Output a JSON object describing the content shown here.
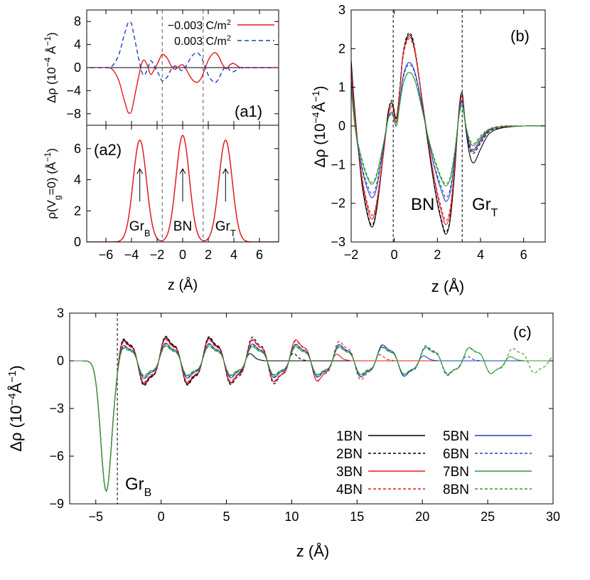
{
  "chart_data": [
    {
      "id": "a1",
      "type": "line",
      "panel_label": "(a1)",
      "ylabel": "Δρ (10⁻⁴ Å⁻¹)",
      "xlim": [
        -7.5,
        7.5
      ],
      "ylim": [
        -10,
        10
      ],
      "yticks": [
        -8,
        -4,
        0,
        4,
        8
      ],
      "xticks": [
        -6,
        -4,
        -2,
        0,
        2,
        4,
        6
      ],
      "vlines": [
        -1.6,
        1.6
      ],
      "legend": [
        {
          "label": "−0.003 C/m²",
          "color": "#e41a1c",
          "style": "solid"
        },
        {
          "label": "0.003 C/m²",
          "color": "#1f3fbf",
          "style": "dashed"
        }
      ],
      "series": [
        {
          "name": "−0.003 C/m²",
          "color": "#e41a1c",
          "dash": "",
          "x": [
            -7.2,
            -6,
            -5.5,
            -5,
            -4.6,
            -4.3,
            -4.15,
            -4,
            -3.8,
            -3.5,
            -3.2,
            -3.0,
            -2.75,
            -2.5,
            -2.2,
            -1.9,
            -1.6,
            -1.2,
            -0.9,
            -0.6,
            -0.3,
            0,
            0.3,
            0.6,
            0.9,
            1.2,
            1.5,
            1.8,
            2.1,
            2.5,
            2.8,
            3.1,
            3.4,
            3.7,
            4.0,
            4.5,
            5,
            6,
            7.2
          ],
          "y": [
            0,
            0,
            -0.3,
            -2.2,
            -5.4,
            -7.6,
            -7.9,
            -7.6,
            -5.5,
            -2.2,
            0.7,
            1.3,
            0.3,
            -1.2,
            -0.2,
            1.0,
            2.3,
            1.6,
            0.3,
            -0.3,
            0.2,
            0.5,
            -0.4,
            -1.6,
            -2.4,
            -2.5,
            -1.6,
            0.2,
            1.7,
            2.6,
            2.0,
            0.6,
            -0.2,
            0.5,
            0.7,
            0,
            0,
            0,
            0
          ]
        },
        {
          "name": "0.003 C/m²",
          "color": "#1f3fbf",
          "dash": "6,4",
          "x": [
            -7.2,
            -6,
            -5.5,
            -5,
            -4.6,
            -4.3,
            -4.15,
            -4,
            -3.8,
            -3.5,
            -3.2,
            -3.0,
            -2.75,
            -2.5,
            -2.2,
            -1.9,
            -1.6,
            -1.2,
            -0.9,
            -0.6,
            -0.3,
            0,
            0.3,
            0.6,
            0.9,
            1.2,
            1.5,
            1.8,
            2.1,
            2.5,
            2.8,
            3.1,
            3.4,
            3.7,
            4.0,
            4.5,
            5,
            6,
            7.2
          ],
          "y": [
            0,
            0,
            0.3,
            2.2,
            5.4,
            7.6,
            7.9,
            7.6,
            5.5,
            2.2,
            -0.7,
            -1.3,
            -0.3,
            1.2,
            0.2,
            -1.0,
            -2.3,
            -1.6,
            -0.3,
            0.3,
            -0.2,
            -0.5,
            0.4,
            1.6,
            2.4,
            2.5,
            1.6,
            -0.2,
            -1.7,
            -2.6,
            -2.0,
            -0.6,
            0.2,
            -0.5,
            -0.7,
            0,
            0,
            0,
            0
          ]
        }
      ]
    },
    {
      "id": "a2",
      "type": "line",
      "panel_label": "(a2)",
      "ylabel": "ρ(V_g=0) (Å⁻¹)",
      "xlabel": "z (Å)",
      "xlim": [
        -7.5,
        7.5
      ],
      "ylim": [
        0,
        7.5
      ],
      "yticks": [
        0,
        2,
        4,
        6
      ],
      "xticks": [
        -6,
        -4,
        -2,
        0,
        2,
        4,
        6
      ],
      "vlines": [
        -1.6,
        1.6
      ],
      "peaks": [
        {
          "center": -3.35,
          "height": 6.55,
          "sigma": 0.52,
          "label": "Gr_B"
        },
        {
          "center": 0.0,
          "height": 6.85,
          "sigma": 0.52,
          "label": "BN"
        },
        {
          "center": 3.35,
          "height": 6.55,
          "sigma": 0.52,
          "label": "Gr_T"
        }
      ],
      "series": [
        {
          "name": "ρ(V_g=0)",
          "color": "#e41a1c"
        }
      ]
    },
    {
      "id": "b",
      "type": "line",
      "panel_label": "(b)",
      "xlabel": "z (Å)",
      "ylabel": "Δρ (10⁻⁴Å⁻¹)",
      "xlim": [
        -2,
        7
      ],
      "ylim": [
        -3,
        3
      ],
      "xticks": [
        -2,
        0,
        2,
        4,
        6
      ],
      "yticks": [
        -3,
        -2,
        -1,
        0,
        1,
        2,
        3
      ],
      "vlines": [
        -0.05,
        3.15
      ],
      "annotations": [
        {
          "text": "BN"
        },
        {
          "text": "Gr_T"
        }
      ],
      "base_x": [
        -2.0,
        -1.8,
        -1.5,
        -1.2,
        -1.0,
        -0.8,
        -0.5,
        -0.3,
        -0.15,
        -0.05,
        0.1,
        0.25,
        0.4,
        0.6,
        0.8,
        1.0,
        1.3,
        1.6,
        1.9,
        2.2,
        2.4,
        2.6,
        2.8,
        3.0,
        3.15,
        3.3,
        3.5,
        3.7,
        4.0,
        4.4,
        5.0,
        6.0,
        7.0
      ],
      "series": [
        {
          "name": "1BN",
          "color": "#000000",
          "dash": "",
          "y": [
            1.7,
            0.2,
            -1.5,
            -2.4,
            -2.6,
            -2.1,
            -0.7,
            0.3,
            0.6,
            0.5,
            0.2,
            0.9,
            1.8,
            2.3,
            2.3,
            1.8,
            0.6,
            -0.6,
            -1.7,
            -2.5,
            -2.8,
            -2.4,
            -1.2,
            0.4,
            0.85,
            0.0,
            -0.75,
            -0.95,
            -0.6,
            -0.2,
            -0.05,
            0.0,
            0.0
          ]
        },
        {
          "name": "2BN",
          "color": "#000000",
          "dash": "4,3",
          "y": [
            1.6,
            0.15,
            -1.45,
            -2.35,
            -2.55,
            -2.05,
            -0.7,
            0.3,
            0.65,
            0.55,
            0.2,
            0.95,
            1.85,
            2.35,
            2.35,
            1.85,
            0.65,
            -0.6,
            -1.65,
            -2.45,
            -2.75,
            -2.35,
            -1.15,
            0.4,
            0.8,
            0.05,
            -0.6,
            -0.7,
            -0.45,
            -0.15,
            -0.03,
            0.0,
            0.0
          ]
        },
        {
          "name": "3BN",
          "color": "#e41a1c",
          "dash": "",
          "y": [
            1.5,
            0.1,
            -1.35,
            -2.2,
            -2.4,
            -1.95,
            -0.7,
            0.2,
            0.5,
            0.45,
            0.1,
            0.85,
            1.8,
            2.25,
            2.25,
            1.8,
            0.65,
            -0.5,
            -1.5,
            -2.25,
            -2.55,
            -2.2,
            -1.05,
            0.35,
            0.75,
            0.05,
            -0.55,
            -0.6,
            -0.35,
            -0.1,
            -0.02,
            0.0,
            0.0
          ]
        },
        {
          "name": "4BN",
          "color": "#e41a1c",
          "dash": "4,3",
          "y": [
            1.4,
            0.05,
            -1.3,
            -2.1,
            -2.3,
            -1.9,
            -0.65,
            0.2,
            0.5,
            0.45,
            0.1,
            0.85,
            1.75,
            2.2,
            2.2,
            1.75,
            0.65,
            -0.5,
            -1.45,
            -2.15,
            -2.45,
            -2.1,
            -1.0,
            0.35,
            0.7,
            0.1,
            -0.45,
            -0.5,
            -0.3,
            -0.08,
            0.0,
            0.0,
            0.0
          ]
        },
        {
          "name": "5BN",
          "color": "#1f3fbf",
          "dash": "",
          "y": [
            1.2,
            -0.1,
            -1.1,
            -1.7,
            -1.85,
            -1.55,
            -0.55,
            0.15,
            0.35,
            0.3,
            0.0,
            0.6,
            1.25,
            1.6,
            1.6,
            1.3,
            0.5,
            -0.4,
            -1.15,
            -1.7,
            -1.95,
            -1.7,
            -0.85,
            0.3,
            0.65,
            0.05,
            -0.55,
            -0.65,
            -0.4,
            -0.12,
            -0.02,
            0.0,
            0.0
          ]
        },
        {
          "name": "6BN",
          "color": "#1f3fbf",
          "dash": "4,3",
          "y": [
            1.1,
            -0.1,
            -1.05,
            -1.6,
            -1.75,
            -1.45,
            -0.5,
            0.15,
            0.35,
            0.3,
            0.0,
            0.6,
            1.2,
            1.55,
            1.55,
            1.25,
            0.45,
            -0.4,
            -1.1,
            -1.6,
            -1.85,
            -1.6,
            -0.8,
            0.3,
            0.6,
            0.05,
            -0.5,
            -0.6,
            -0.35,
            -0.1,
            -0.02,
            0.0,
            0.0
          ]
        },
        {
          "name": "7BN",
          "color": "#2e9b2e",
          "dash": "",
          "y": [
            1.0,
            -0.1,
            -0.9,
            -1.4,
            -1.5,
            -1.25,
            -0.45,
            0.15,
            0.3,
            0.25,
            0.0,
            0.55,
            1.05,
            1.35,
            1.35,
            1.1,
            0.4,
            -0.35,
            -0.95,
            -1.4,
            -1.55,
            -1.35,
            -0.7,
            0.25,
            0.55,
            0.05,
            -0.4,
            -0.5,
            -0.3,
            -0.1,
            -0.02,
            0.0,
            0.0
          ]
        },
        {
          "name": "8BN",
          "color": "#2e9b2e",
          "dash": "4,3",
          "y": [
            0.95,
            -0.1,
            -0.85,
            -1.35,
            -1.45,
            -1.2,
            -0.45,
            0.15,
            0.3,
            0.25,
            0.0,
            0.55,
            1.05,
            1.35,
            1.35,
            1.1,
            0.4,
            -0.35,
            -0.9,
            -1.35,
            -1.5,
            -1.3,
            -0.65,
            0.25,
            0.5,
            0.05,
            -0.35,
            -0.45,
            -0.25,
            -0.08,
            -0.02,
            0.0,
            0.0
          ]
        }
      ]
    },
    {
      "id": "c",
      "type": "line",
      "panel_label": "(c)",
      "xlabel": "z (Å)",
      "ylabel": "Δρ (10⁻⁴Å⁻¹)",
      "xlim": [
        -7,
        30
      ],
      "ylim": [
        -9,
        3
      ],
      "xticks": [
        -5,
        0,
        5,
        10,
        15,
        20,
        25,
        30
      ],
      "yticks": [
        -9,
        -6,
        -3,
        0,
        3
      ],
      "vlines": [
        -3.35
      ],
      "annotations": [
        {
          "text": "Gr_B"
        }
      ],
      "layer_spacing": 3.32,
      "series": [
        {
          "name": "1BN",
          "color": "#000000",
          "dash": "",
          "n": 1,
          "amp": 1.0
        },
        {
          "name": "2BN",
          "color": "#000000",
          "dash": "4,3",
          "n": 2,
          "amp": 1.05
        },
        {
          "name": "3BN",
          "color": "#e41a1c",
          "dash": "",
          "n": 3,
          "amp": 0.95
        },
        {
          "name": "4BN",
          "color": "#e41a1c",
          "dash": "4,3",
          "n": 4,
          "amp": 0.9
        },
        {
          "name": "5BN",
          "color": "#1f3fbf",
          "dash": "",
          "n": 5,
          "amp": 0.75
        },
        {
          "name": "6BN",
          "color": "#1f3fbf",
          "dash": "4,3",
          "n": 6,
          "amp": 0.72
        },
        {
          "name": "7BN",
          "color": "#2e9b2e",
          "dash": "",
          "n": 7,
          "amp": 0.65
        },
        {
          "name": "8BN",
          "color": "#2e9b2e",
          "dash": "4,3",
          "n": 8,
          "amp": 0.62
        }
      ]
    }
  ]
}
